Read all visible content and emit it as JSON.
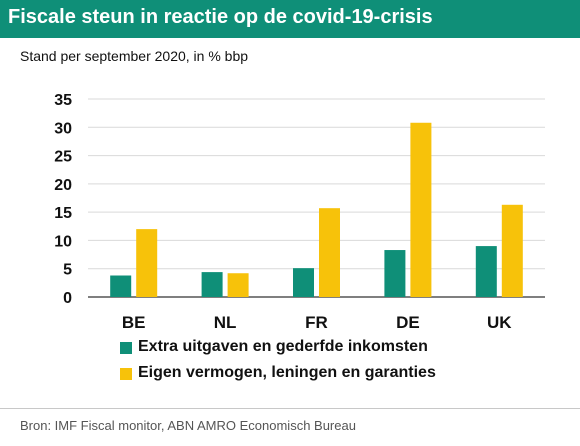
{
  "title": "Fiscale steun in reactie op de covid-19-crisis",
  "subtitle": "Stand per september 2020, in % bbp",
  "source": "Bron: IMF Fiscal monitor, ABN AMRO Economisch Bureau",
  "colors": {
    "title_bg": "#0f8f78",
    "series1": "#0f8f78",
    "series2": "#f7c20a",
    "grid": "#d9d9d9",
    "axis": "#555555"
  },
  "chart_data": {
    "type": "bar",
    "categories": [
      "BE",
      "NL",
      "FR",
      "DE",
      "UK"
    ],
    "series": [
      {
        "name": "Extra uitgaven en gederfde inkomsten",
        "values": [
          3.8,
          4.4,
          5.1,
          8.3,
          9.0
        ]
      },
      {
        "name": "Eigen vermogen, leningen en garanties",
        "values": [
          12.0,
          4.2,
          15.7,
          30.8,
          16.3
        ]
      }
    ],
    "yticks": [
      "0",
      "5",
      "10",
      "15",
      "20",
      "25",
      "30",
      "35"
    ],
    "ylim": [
      0,
      35
    ],
    "grid": true,
    "legend_position": "bottom"
  }
}
